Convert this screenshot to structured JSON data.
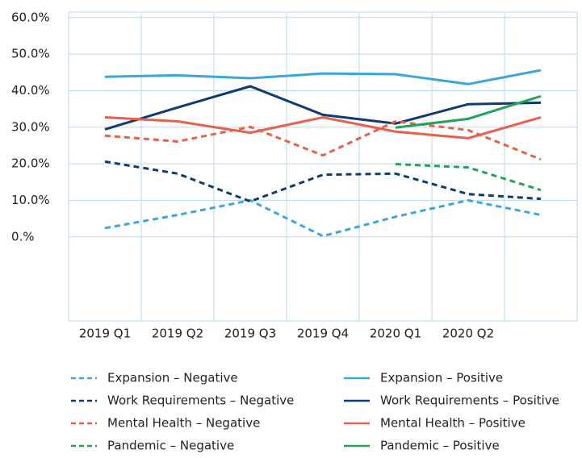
{
  "chart_data": {
    "type": "line",
    "categories": [
      "2019 Q1",
      "2019 Q2",
      "2019 Q3",
      "2019 Q4",
      "2020 Q1",
      "2020 Q2",
      null
    ],
    "ylim": [
      -23,
      61.5
    ],
    "yticks": [
      {
        "value": 60,
        "label": "60.0%"
      },
      {
        "value": 50,
        "label": "50.0%"
      },
      {
        "value": 40,
        "label": "40.0%"
      },
      {
        "value": 30,
        "label": "30.0%"
      },
      {
        "value": 20,
        "label": "20.0%"
      },
      {
        "value": 10,
        "label": "10.0%"
      },
      {
        "value": 0,
        "label": "0.%"
      }
    ],
    "grid": true,
    "series": [
      {
        "name": "Expansion – Negative",
        "color": "#3aa7dc",
        "style": "dashed",
        "values": [
          2.4,
          6,
          10,
          0.2,
          5.5,
          10,
          6
        ]
      },
      {
        "name": "Expansion – Positive",
        "color": "#3aa7dc",
        "style": "solid",
        "values": [
          43.8,
          44.2,
          43.4,
          44.7,
          44.5,
          41.8,
          45.6
        ]
      },
      {
        "name": "Work Requirements – Negative",
        "color": "#0d3b72",
        "style": "dashed",
        "values": [
          20.6,
          17.3,
          9.7,
          17,
          17.3,
          11.7,
          10.4
        ]
      },
      {
        "name": "Work Requirements – Positive",
        "color": "#0d3b72",
        "style": "solid",
        "values": [
          29.4,
          35.4,
          41.2,
          33.4,
          31,
          36.3,
          36.7
        ]
      },
      {
        "name": "Mental Health – Negative",
        "color": "#e8604c",
        "style": "dashed",
        "values": [
          27.7,
          26.1,
          30.1,
          22.3,
          31.6,
          29.2,
          21.2
        ]
      },
      {
        "name": "Mental Health – Positive",
        "color": "#e8604c",
        "style": "solid",
        "values": [
          32.7,
          31.6,
          28.5,
          32.7,
          28.8,
          27,
          32.7
        ]
      },
      {
        "name": "Pandemic – Negative",
        "color": "#22a35a",
        "style": "dashed",
        "values": [
          null,
          null,
          null,
          null,
          19.9,
          19,
          12.8
        ]
      },
      {
        "name": "Pandemic – Positive",
        "color": "#22a35a",
        "style": "solid",
        "values": [
          null,
          null,
          null,
          null,
          29.9,
          32.3,
          38.5
        ]
      }
    ]
  }
}
